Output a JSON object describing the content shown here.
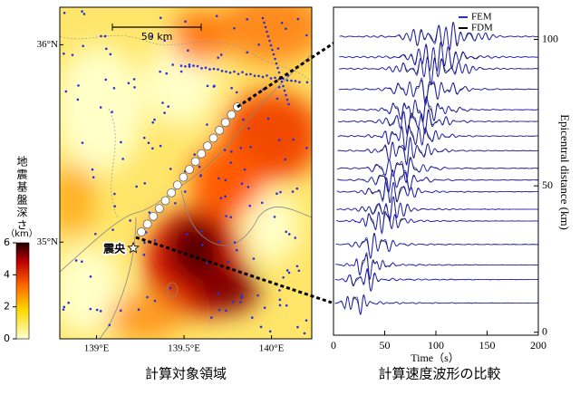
{
  "map": {
    "scale_label": "50 km",
    "epicenter_label": "震央",
    "caption": "計算対象領域",
    "xlim": [
      138.79,
      140.23
    ],
    "ylim": [
      34.51,
      36.19
    ],
    "xticks": [
      {
        "value": 139,
        "label": "139°E"
      },
      {
        "value": 139.5,
        "label": "139.5°E"
      },
      {
        "value": 140,
        "label": "140°E"
      }
    ],
    "yticks": [
      {
        "value": 35,
        "label": "35°N"
      },
      {
        "value": 36,
        "label": "36°N"
      }
    ],
    "epicenter": [
      139.21,
      34.97
    ]
  },
  "colorbar": {
    "label": "地震基盤深さ",
    "unit": "（km）",
    "lim": [
      0,
      6
    ],
    "ticks": [
      0,
      2,
      4,
      6
    ]
  },
  "chart_data": {
    "type": "waveform",
    "caption": "計算速度波形の比較",
    "xlabel": "Time（s）",
    "ylabel": "Epicentral distance (km)",
    "xlim": [
      0,
      200
    ],
    "xticks": [
      0,
      50,
      100,
      150,
      200
    ],
    "ylim": [
      -1,
      111
    ],
    "yticks": [
      0,
      50,
      100
    ],
    "distances": [
      101,
      94,
      90,
      83,
      76,
      72,
      67,
      62,
      56,
      52,
      48,
      42,
      38,
      30,
      23,
      18,
      10
    ],
    "legend": [
      {
        "name": "FEM",
        "color": "#2b2bd6"
      },
      {
        "name": "FDM",
        "color": "#000000"
      }
    ]
  }
}
